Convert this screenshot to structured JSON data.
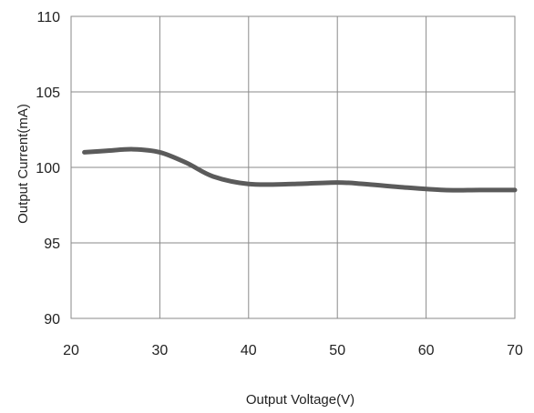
{
  "chart_data": {
    "type": "line",
    "title": "",
    "xlabel": "Output Voltage(V)",
    "ylabel": "Output Current(mA)",
    "xlim": [
      20,
      70
    ],
    "ylim": [
      90,
      110
    ],
    "x_ticks": [
      20,
      30,
      40,
      50,
      60,
      70
    ],
    "y_ticks": [
      90,
      95,
      100,
      105,
      110
    ],
    "grid": true,
    "legend": "none",
    "series": [
      {
        "color": "#5b5b5b",
        "x": [
          21.5,
          24,
          27,
          30,
          33,
          36,
          40,
          45,
          50,
          53,
          57,
          62,
          66,
          70
        ],
        "y": [
          101.0,
          101.1,
          101.2,
          101.0,
          100.3,
          99.4,
          98.9,
          98.9,
          99.0,
          98.9,
          98.7,
          98.5,
          98.5,
          98.5
        ]
      }
    ]
  }
}
